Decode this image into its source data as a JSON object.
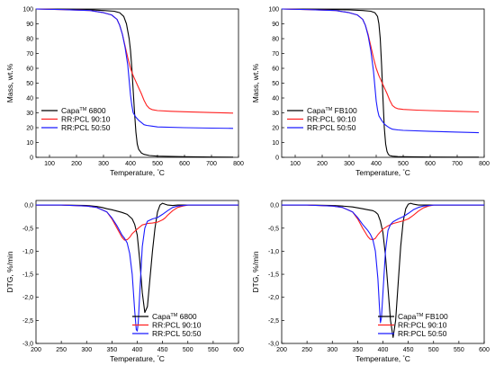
{
  "figure": {
    "colors": {
      "black": "#000000",
      "red": "#ff2020",
      "blue": "#1a1aff"
    }
  },
  "chart_data": [
    {
      "type": "line",
      "xlabel_prefix": "Temperature, ",
      "xlabel_unit": "°C",
      "ylabel": "Mass, wt.%",
      "xlim": [
        50,
        800
      ],
      "ylim": [
        0,
        100
      ],
      "xticks": [
        100,
        200,
        300,
        400,
        500,
        600,
        700,
        800
      ],
      "yticks": [
        0,
        10,
        20,
        30,
        40,
        50,
        60,
        70,
        80,
        90,
        100
      ],
      "legend_position": "bottom-left",
      "series": [
        {
          "name_main": "Capa",
          "name_sup": "TM",
          "name_tail": " 6800",
          "color": "black",
          "x": [
            50,
            150,
            250,
            300,
            340,
            360,
            375,
            385,
            395,
            400,
            405,
            410,
            415,
            420,
            425,
            430,
            440,
            450,
            470,
            500,
            600,
            700,
            780
          ],
          "y": [
            100,
            99.8,
            99.5,
            99,
            98.5,
            97.5,
            95,
            90,
            80,
            72,
            60,
            45,
            30,
            17,
            9,
            5.5,
            3,
            2,
            1.2,
            0.8,
            0.4,
            0.2,
            0.1
          ]
        },
        {
          "name_main": "RR:PCL 90:10",
          "name_sup": "",
          "name_tail": "",
          "color": "red",
          "x": [
            50,
            150,
            250,
            300,
            330,
            350,
            360,
            370,
            380,
            390,
            400,
            410,
            420,
            430,
            440,
            450,
            460,
            470,
            480,
            500,
            550,
            600,
            700,
            780
          ],
          "y": [
            100,
            99.6,
            99,
            97.5,
            96,
            93,
            89,
            83,
            75,
            67,
            60,
            55,
            51,
            47,
            43,
            38.5,
            35,
            33,
            32.2,
            31.5,
            31,
            30.7,
            30.2,
            29.8
          ]
        },
        {
          "name_main": "RR:PCL 50:50",
          "name_sup": "",
          "name_tail": "",
          "color": "blue",
          "x": [
            50,
            150,
            250,
            300,
            330,
            350,
            360,
            370,
            380,
            390,
            395,
            400,
            405,
            410,
            420,
            430,
            440,
            450,
            460,
            480,
            500,
            600,
            700,
            780
          ],
          "y": [
            100,
            99.6,
            99,
            97.5,
            96,
            93,
            89,
            83,
            74,
            62,
            52,
            42,
            35,
            30,
            27,
            25,
            23.5,
            22,
            21.5,
            21,
            20.5,
            20,
            19.7,
            19.5
          ]
        }
      ]
    },
    {
      "type": "line",
      "xlabel_prefix": "Temperature, ",
      "xlabel_unit": "°C",
      "ylabel": "Mass, wt.%",
      "xlim": [
        50,
        800
      ],
      "ylim": [
        0,
        100
      ],
      "xticks": [
        100,
        200,
        300,
        400,
        500,
        600,
        700,
        800
      ],
      "yticks": [
        0,
        10,
        20,
        30,
        40,
        50,
        60,
        70,
        80,
        90,
        100
      ],
      "legend_position": "bottom-left",
      "series": [
        {
          "name_main": "Capa",
          "name_sup": "TM",
          "name_tail": " FB100",
          "color": "black",
          "x": [
            50,
            150,
            250,
            300,
            350,
            380,
            395,
            405,
            410,
            415,
            420,
            425,
            430,
            435,
            440,
            445,
            450,
            460,
            480,
            500,
            600,
            700,
            780
          ],
          "y": [
            100,
            99.8,
            99.6,
            99.4,
            99,
            98.5,
            97.5,
            95,
            90,
            80,
            62,
            40,
            20,
            9,
            4,
            2,
            1.2,
            0.8,
            0.5,
            0.4,
            0.2,
            0.1,
            0.1
          ]
        },
        {
          "name_main": "RR:PCL 90:10",
          "name_sup": "",
          "name_tail": "",
          "color": "red",
          "x": [
            50,
            150,
            250,
            300,
            330,
            350,
            360,
            370,
            380,
            390,
            400,
            410,
            420,
            430,
            440,
            450,
            460,
            470,
            480,
            500,
            550,
            600,
            700,
            780
          ],
          "y": [
            100,
            99.6,
            99,
            97.5,
            96,
            93,
            89,
            83,
            75,
            67,
            60,
            55,
            51,
            47,
            43,
            38.5,
            35,
            33.5,
            32.8,
            32.3,
            31.8,
            31.5,
            31,
            30.6
          ]
        },
        {
          "name_main": "RR:PCL 50:50",
          "name_sup": "",
          "name_tail": "",
          "color": "blue",
          "x": [
            50,
            150,
            250,
            300,
            330,
            350,
            360,
            370,
            380,
            390,
            395,
            400,
            405,
            410,
            420,
            430,
            440,
            450,
            460,
            480,
            500,
            600,
            700,
            780
          ],
          "y": [
            100,
            99.6,
            99,
            97.5,
            96,
            93,
            89,
            82,
            72,
            58,
            48,
            38,
            32,
            28,
            25,
            22.5,
            21,
            19.8,
            19,
            18.5,
            18.2,
            17.5,
            17,
            16.6
          ]
        }
      ]
    },
    {
      "type": "line",
      "xlabel_prefix": "Temperature, ",
      "xlabel_unit": "°C",
      "ylabel": "DTG, %/min",
      "xlim": [
        200,
        600
      ],
      "ylim": [
        -3.0,
        0.1
      ],
      "xticks": [
        200,
        250,
        300,
        350,
        400,
        450,
        500,
        550,
        600
      ],
      "yticks": [
        "0,0",
        "-0,5",
        "-1,0",
        "-1,5",
        "-2,0",
        "-2,5",
        "-3,0"
      ],
      "ytick_values": [
        0,
        -0.5,
        -1.0,
        -1.5,
        -2.0,
        -2.5,
        -3.0
      ],
      "legend_position": "bottom-right",
      "series": [
        {
          "name_main": "Capa",
          "name_sup": "TM",
          "name_tail": " 6800",
          "color": "black",
          "x": [
            200,
            250,
            300,
            320,
            330,
            340,
            350,
            360,
            370,
            380,
            390,
            395,
            400,
            405,
            410,
            415,
            420,
            425,
            430,
            435,
            440,
            445,
            450,
            455,
            460,
            470,
            480,
            500,
            600
          ],
          "y": [
            0,
            0,
            -0.01,
            -0.03,
            -0.05,
            -0.08,
            -0.1,
            -0.13,
            -0.16,
            -0.2,
            -0.3,
            -0.42,
            -0.65,
            -1.2,
            -1.9,
            -2.33,
            -2.2,
            -1.6,
            -1.0,
            -0.5,
            -0.15,
            0.0,
            0.04,
            0.02,
            0.0,
            -0.01,
            0,
            0,
            0
          ]
        },
        {
          "name_main": "RR:PCL 90:10",
          "name_sup": "",
          "name_tail": "",
          "color": "red",
          "x": [
            200,
            250,
            300,
            320,
            340,
            350,
            360,
            370,
            375,
            380,
            385,
            390,
            400,
            410,
            420,
            430,
            440,
            450,
            455,
            460,
            470,
            480,
            490,
            500,
            600
          ],
          "y": [
            0,
            0,
            -0.02,
            -0.05,
            -0.15,
            -0.3,
            -0.5,
            -0.7,
            -0.76,
            -0.75,
            -0.7,
            -0.62,
            -0.52,
            -0.43,
            -0.4,
            -0.39,
            -0.37,
            -0.32,
            -0.28,
            -0.22,
            -0.12,
            -0.05,
            -0.02,
            0,
            0
          ]
        },
        {
          "name_main": "RR:PCL 50:50",
          "name_sup": "",
          "name_tail": "",
          "color": "blue",
          "x": [
            200,
            250,
            300,
            320,
            340,
            350,
            360,
            365,
            370,
            375,
            380,
            385,
            390,
            395,
            398,
            400,
            402,
            405,
            410,
            415,
            420,
            430,
            440,
            450,
            460,
            470,
            480,
            500,
            600
          ],
          "y": [
            0,
            0,
            -0.02,
            -0.05,
            -0.15,
            -0.28,
            -0.45,
            -0.55,
            -0.65,
            -0.72,
            -0.82,
            -1.05,
            -1.5,
            -2.3,
            -2.7,
            -2.73,
            -2.55,
            -1.9,
            -0.9,
            -0.5,
            -0.35,
            -0.3,
            -0.27,
            -0.2,
            -0.12,
            -0.05,
            -0.02,
            0,
            0
          ]
        }
      ]
    },
    {
      "type": "line",
      "xlabel_prefix": "Temperature, ",
      "xlabel_unit": "°C",
      "ylabel": "DTG, %/min",
      "xlim": [
        200,
        600
      ],
      "ylim": [
        -3.0,
        0.1
      ],
      "xticks": [
        200,
        250,
        300,
        350,
        400,
        450,
        500,
        550,
        600
      ],
      "yticks": [
        "0,0",
        "-0,5",
        "-1,0",
        "-1,5",
        "-2,0",
        "-2,5",
        "-3,0"
      ],
      "ytick_values": [
        0,
        -0.5,
        -1.0,
        -1.5,
        -2.0,
        -2.5,
        -3.0
      ],
      "legend_position": "bottom-right",
      "series": [
        {
          "name_main": "Capa",
          "name_sup": "TM",
          "name_tail": " FB100",
          "color": "black",
          "x": [
            200,
            250,
            300,
            320,
            340,
            350,
            360,
            370,
            380,
            385,
            390,
            395,
            400,
            405,
            410,
            415,
            420,
            425,
            430,
            435,
            440,
            445,
            450,
            455,
            460,
            470,
            480,
            500,
            600
          ],
          "y": [
            0,
            0,
            -0.01,
            -0.02,
            -0.04,
            -0.06,
            -0.08,
            -0.1,
            -0.12,
            -0.15,
            -0.2,
            -0.35,
            -0.6,
            -1.1,
            -1.8,
            -2.5,
            -2.87,
            -2.5,
            -1.7,
            -0.9,
            -0.35,
            -0.08,
            0.02,
            0.04,
            0.02,
            0,
            0,
            0,
            0
          ]
        },
        {
          "name_main": "RR:PCL 90:10",
          "name_sup": "",
          "name_tail": "",
          "color": "red",
          "x": [
            200,
            250,
            300,
            320,
            340,
            350,
            360,
            370,
            375,
            380,
            385,
            390,
            400,
            410,
            420,
            430,
            440,
            450,
            460,
            470,
            480,
            490,
            500,
            600
          ],
          "y": [
            0,
            0,
            -0.02,
            -0.05,
            -0.15,
            -0.3,
            -0.5,
            -0.68,
            -0.74,
            -0.75,
            -0.72,
            -0.64,
            -0.52,
            -0.45,
            -0.4,
            -0.37,
            -0.34,
            -0.3,
            -0.22,
            -0.13,
            -0.06,
            -0.02,
            0,
            0
          ]
        },
        {
          "name_main": "RR:PCL 50:50",
          "name_sup": "",
          "name_tail": "",
          "color": "blue",
          "x": [
            200,
            250,
            300,
            320,
            340,
            350,
            360,
            370,
            375,
            380,
            385,
            390,
            393,
            395,
            397,
            400,
            405,
            410,
            415,
            420,
            430,
            440,
            450,
            460,
            470,
            480,
            500,
            600
          ],
          "y": [
            0,
            0,
            -0.02,
            -0.05,
            -0.15,
            -0.27,
            -0.42,
            -0.55,
            -0.63,
            -0.75,
            -1.0,
            -1.6,
            -2.2,
            -2.55,
            -2.45,
            -1.9,
            -1.0,
            -0.55,
            -0.42,
            -0.36,
            -0.3,
            -0.25,
            -0.18,
            -0.1,
            -0.05,
            -0.02,
            0,
            0
          ]
        }
      ]
    }
  ]
}
